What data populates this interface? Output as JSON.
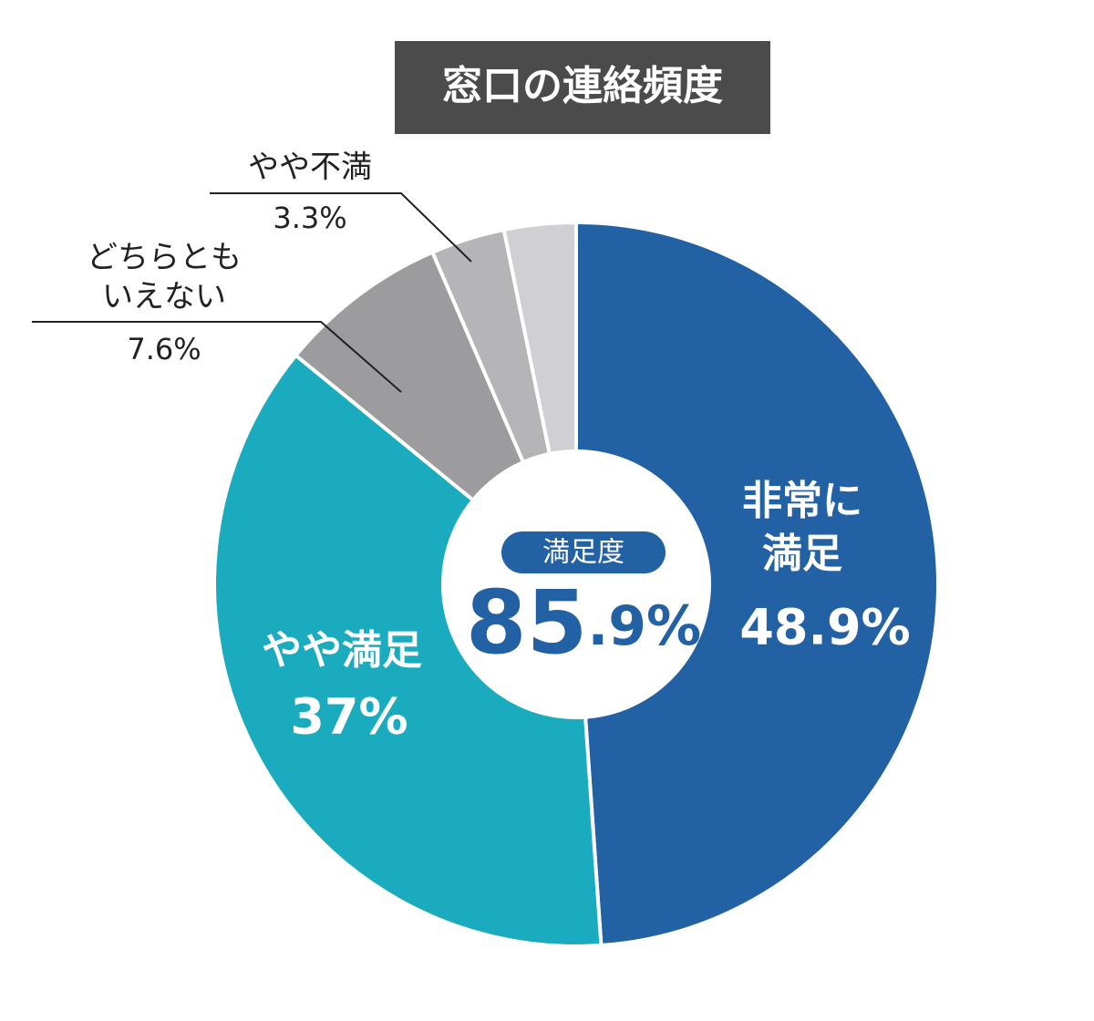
{
  "chart_data": {
    "type": "donut",
    "title": "窓口の連絡頻度",
    "categories": [
      [
        "非常に",
        "満足"
      ],
      [
        "やや満足"
      ],
      [
        "どちらとも",
        "いえない"
      ],
      [
        "やや不満"
      ],
      null
    ],
    "values": [
      48.9,
      37,
      7.6,
      3.3,
      3.2
    ],
    "value_labels": [
      "48.9%",
      "37%",
      "7.6%",
      "3.3%",
      null
    ],
    "colors": [
      "#2361a5",
      "#1aabbe",
      "#9c9b9e",
      "#b5b4b7",
      "#d0cfd3"
    ],
    "center_label": "満足度",
    "center_value": [
      "85",
      ".9%"
    ],
    "center_color": "#2361a5"
  }
}
